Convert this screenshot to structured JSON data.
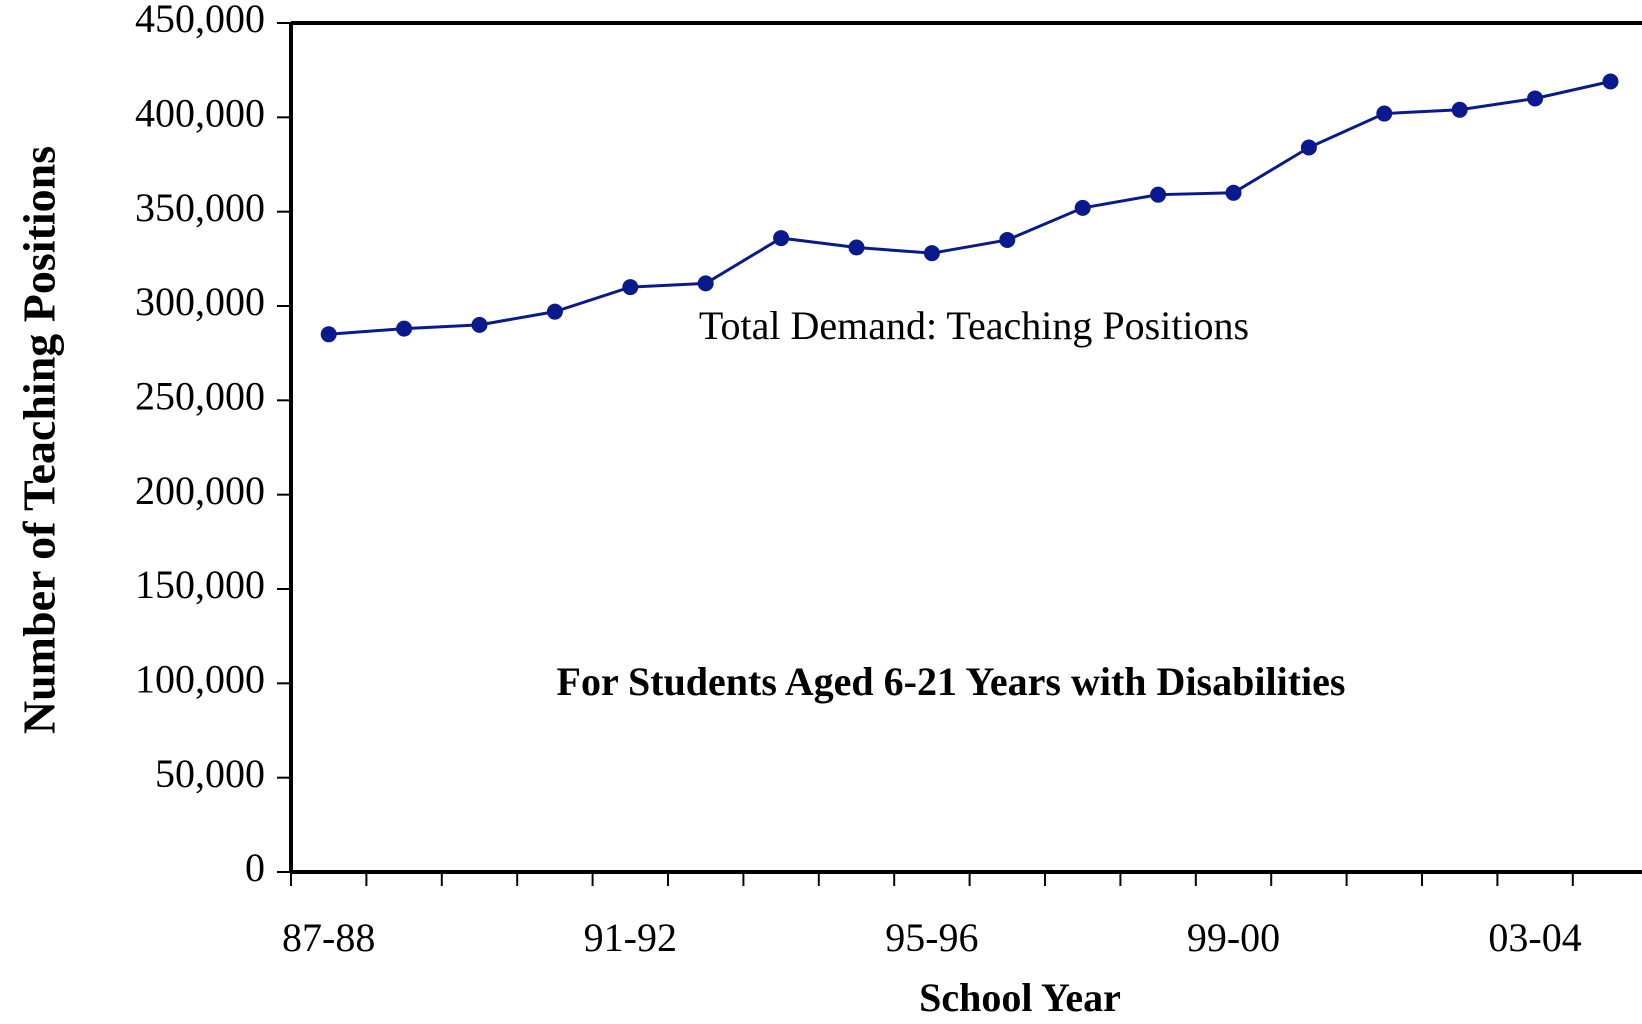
{
  "chart_data": {
    "type": "line",
    "x_label": "School Year",
    "y_label": "Number of Teaching Positions",
    "annotations": [
      "Total Demand: Teaching Positions",
      "For Students Aged 6-21 Years with Disabilities"
    ],
    "categories": [
      "87-88",
      null,
      null,
      null,
      "91-92",
      null,
      null,
      null,
      "95-96",
      null,
      null,
      null,
      "99-00",
      null,
      null,
      null,
      "03-04",
      null
    ],
    "series": [
      {
        "color": "#0a1a8c",
        "values": [
          285000,
          288000,
          290000,
          297000,
          310000,
          312000,
          336000,
          331000,
          328000,
          335000,
          352000,
          359000,
          360000,
          384000,
          402000,
          404000,
          410000,
          419000
        ]
      }
    ],
    "ylim": [
      0,
      450000
    ],
    "yticks": [
      {
        "value": 0,
        "label": "0"
      },
      {
        "value": 50000,
        "label": "50,000"
      },
      {
        "value": 100000,
        "label": "100,000"
      },
      {
        "value": 150000,
        "label": "150,000"
      },
      {
        "value": 200000,
        "label": "200,000"
      },
      {
        "value": 250000,
        "label": "250,000"
      },
      {
        "value": 300000,
        "label": "300,000"
      },
      {
        "value": 350000,
        "label": "350,000"
      },
      {
        "value": 400000,
        "label": "400,000"
      },
      {
        "value": 450000,
        "label": "450,000"
      }
    ]
  }
}
